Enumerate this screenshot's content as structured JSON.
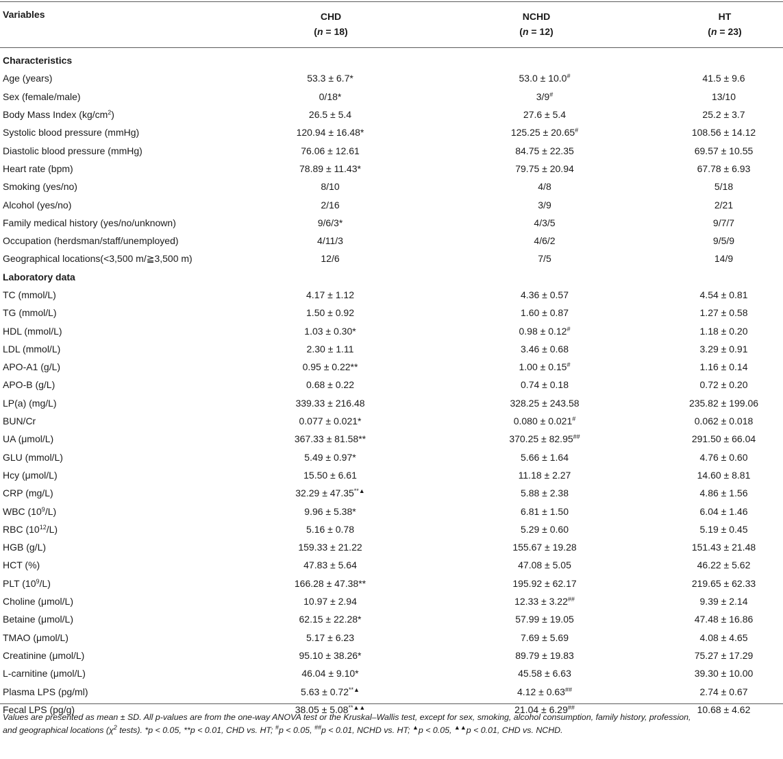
{
  "header": {
    "variables": "Variables",
    "columns": [
      {
        "name": "CHD",
        "n_prefix": "(",
        "n_var": "n",
        "n_suffix": " = 18)"
      },
      {
        "name": "NCHD",
        "n_prefix": "(",
        "n_var": "n",
        "n_suffix": " = 12)"
      },
      {
        "name": "HT",
        "n_prefix": "(",
        "n_var": "n",
        "n_suffix": " = 23)"
      }
    ]
  },
  "rows": [
    {
      "type": "section",
      "label": "Characteristics"
    },
    {
      "label": "Age (years)",
      "v": [
        [
          "53.3 ± 6.7*",
          ""
        ],
        [
          "53.0 ± 10.0",
          "#"
        ],
        [
          "41.5 ± 9.6",
          ""
        ]
      ]
    },
    {
      "label": "Sex (female/male)",
      "v": [
        [
          "0/18*",
          ""
        ],
        [
          "3/9",
          "#"
        ],
        [
          "13/10",
          ""
        ]
      ]
    },
    {
      "label": "Body Mass Index (kg/cm",
      "label_sup": "2",
      "label_tail": ")",
      "v": [
        [
          "26.5 ± 5.4",
          ""
        ],
        [
          "27.6 ± 5.4",
          ""
        ],
        [
          "25.2 ± 3.7",
          ""
        ]
      ]
    },
    {
      "label": "Systolic blood pressure (mmHg)",
      "v": [
        [
          "120.94 ± 16.48*",
          ""
        ],
        [
          "125.25 ± 20.65",
          "#"
        ],
        [
          "108.56 ± 14.12",
          ""
        ]
      ]
    },
    {
      "label": "Diastolic blood pressure (mmHg)",
      "v": [
        [
          "76.06 ± 12.61",
          ""
        ],
        [
          "84.75 ± 22.35",
          ""
        ],
        [
          "69.57 ± 10.55",
          ""
        ]
      ]
    },
    {
      "label": "Heart rate (bpm)",
      "v": [
        [
          "78.89 ± 11.43*",
          ""
        ],
        [
          "79.75 ± 20.94",
          ""
        ],
        [
          "67.78 ± 6.93",
          ""
        ]
      ]
    },
    {
      "label": "Smoking (yes/no)",
      "v": [
        [
          "8/10",
          ""
        ],
        [
          "4/8",
          ""
        ],
        [
          "5/18",
          ""
        ]
      ]
    },
    {
      "label": "Alcohol (yes/no)",
      "v": [
        [
          "2/16",
          ""
        ],
        [
          "3/9",
          ""
        ],
        [
          "2/21",
          ""
        ]
      ]
    },
    {
      "label": "Family medical history (yes/no/unknown)",
      "v": [
        [
          "9/6/3*",
          ""
        ],
        [
          "4/3/5",
          ""
        ],
        [
          "9/7/7",
          ""
        ]
      ]
    },
    {
      "label": "Occupation (herdsman/staff/unemployed)",
      "v": [
        [
          "4/11/3",
          ""
        ],
        [
          "4/6/2",
          ""
        ],
        [
          "9/5/9",
          ""
        ]
      ]
    },
    {
      "label": "Geographical locations(<3,500 m/≧3,500 m)",
      "v": [
        [
          "12/6",
          ""
        ],
        [
          "7/5",
          ""
        ],
        [
          "14/9",
          ""
        ]
      ]
    },
    {
      "type": "section",
      "label": "Laboratory data"
    },
    {
      "label": "TC (mmol/L)",
      "v": [
        [
          "4.17 ± 1.12",
          ""
        ],
        [
          "4.36 ± 0.57",
          ""
        ],
        [
          "4.54 ± 0.81",
          ""
        ]
      ]
    },
    {
      "label": "TG (mmol/L)",
      "v": [
        [
          "1.50 ± 0.92",
          ""
        ],
        [
          "1.60 ± 0.87",
          ""
        ],
        [
          "1.27 ± 0.58",
          ""
        ]
      ]
    },
    {
      "label": "HDL (mmol/L)",
      "v": [
        [
          "1.03 ± 0.30*",
          ""
        ],
        [
          "0.98 ± 0.12",
          "#"
        ],
        [
          "1.18 ± 0.20",
          ""
        ]
      ]
    },
    {
      "label": "LDL (mmol/L)",
      "v": [
        [
          "2.30 ± 1.11",
          ""
        ],
        [
          "3.46 ± 0.68",
          ""
        ],
        [
          "3.29 ± 0.91",
          ""
        ]
      ]
    },
    {
      "label": "APO-A1 (g/L)",
      "v": [
        [
          "0.95 ± 0.22**",
          ""
        ],
        [
          "1.00 ± 0.15",
          "#"
        ],
        [
          "1.16 ± 0.14",
          ""
        ]
      ]
    },
    {
      "label": "APO-B (g/L)",
      "v": [
        [
          "0.68 ± 0.22",
          ""
        ],
        [
          "0.74 ± 0.18",
          ""
        ],
        [
          "0.72 ± 0.20",
          ""
        ]
      ]
    },
    {
      "label": "LP(a) (mg/L)",
      "v": [
        [
          "339.33 ± 216.48",
          ""
        ],
        [
          "328.25 ± 243.58",
          ""
        ],
        [
          "235.82 ± 199.06",
          ""
        ]
      ]
    },
    {
      "label": "BUN/Cr",
      "v": [
        [
          "0.077 ± 0.021*",
          ""
        ],
        [
          "0.080 ± 0.021",
          "#"
        ],
        [
          "0.062 ± 0.018",
          ""
        ]
      ]
    },
    {
      "label": "UA (μmol/L)",
      "v": [
        [
          "367.33 ± 81.58**",
          ""
        ],
        [
          "370.25 ± 82.95",
          "##"
        ],
        [
          "291.50 ± 66.04",
          ""
        ]
      ]
    },
    {
      "label": "GLU (mmol/L)",
      "v": [
        [
          "5.49 ± 0.97*",
          ""
        ],
        [
          "5.66 ± 1.64",
          ""
        ],
        [
          "4.76 ± 0.60",
          ""
        ]
      ]
    },
    {
      "label": "Hcy (μmol/L)",
      "v": [
        [
          "15.50 ± 6.61",
          ""
        ],
        [
          "11.18 ± 2.27",
          ""
        ],
        [
          "14.60 ± 8.81",
          ""
        ]
      ]
    },
    {
      "label": "CRP (mg/L)",
      "v": [
        [
          "32.29 ± 47.35",
          "**▲"
        ],
        [
          "5.88 ± 2.38",
          ""
        ],
        [
          "4.86 ± 1.56",
          ""
        ]
      ]
    },
    {
      "label": "WBC (10",
      "label_sup": "9",
      "label_tail": "/L)",
      "v": [
        [
          "9.96 ± 5.38*",
          ""
        ],
        [
          "6.81 ± 1.50",
          ""
        ],
        [
          "6.04 ± 1.46",
          ""
        ]
      ]
    },
    {
      "label": "RBC (10",
      "label_sup": "12",
      "label_tail": "/L)",
      "v": [
        [
          "5.16 ± 0.78",
          ""
        ],
        [
          "5.29 ± 0.60",
          ""
        ],
        [
          "5.19 ± 0.45",
          ""
        ]
      ]
    },
    {
      "label": "HGB (g/L)",
      "v": [
        [
          "159.33 ± 21.22",
          ""
        ],
        [
          "155.67 ± 19.28",
          ""
        ],
        [
          "151.43 ± 21.48",
          ""
        ]
      ]
    },
    {
      "label": "HCT (%)",
      "v": [
        [
          "47.83 ± 5.64",
          ""
        ],
        [
          "47.08 ± 5.05",
          ""
        ],
        [
          "46.22 ± 5.62",
          ""
        ]
      ]
    },
    {
      "label": "PLT (10",
      "label_sup": "9",
      "label_tail": "/L)",
      "v": [
        [
          "166.28 ± 47.38**",
          ""
        ],
        [
          "195.92 ± 62.17",
          ""
        ],
        [
          "219.65 ± 62.33",
          ""
        ]
      ]
    },
    {
      "label": "Choline (μmol/L)",
      "v": [
        [
          "10.97 ± 2.94",
          ""
        ],
        [
          "12.33 ± 3.22",
          "##"
        ],
        [
          "9.39 ± 2.14",
          ""
        ]
      ]
    },
    {
      "label": "Betaine (μmol/L)",
      "v": [
        [
          "62.15 ± 22.28*",
          ""
        ],
        [
          "57.99 ± 19.05",
          ""
        ],
        [
          "47.48 ± 16.86",
          ""
        ]
      ]
    },
    {
      "label": "TMAO (μmol/L)",
      "v": [
        [
          "5.17 ± 6.23",
          ""
        ],
        [
          "7.69 ± 5.69",
          ""
        ],
        [
          "4.08 ± 4.65",
          ""
        ]
      ]
    },
    {
      "label": "Creatinine (μmol/L)",
      "v": [
        [
          "95.10 ± 38.26*",
          ""
        ],
        [
          "89.79 ± 19.83",
          ""
        ],
        [
          "75.27 ± 17.29",
          ""
        ]
      ]
    },
    {
      "label": "L-carnitine (μmol/L)",
      "v": [
        [
          "46.04 ± 9.10*",
          ""
        ],
        [
          "45.58 ± 6.63",
          ""
        ],
        [
          "39.30 ± 10.00",
          ""
        ]
      ]
    },
    {
      "label": "Plasma LPS (pg/ml)",
      "v": [
        [
          "5.63 ± 0.72",
          "**▲"
        ],
        [
          "4.12 ± 0.63",
          "##"
        ],
        [
          "2.74 ± 0.67",
          ""
        ]
      ]
    },
    {
      "label": "Fecal LPS (pg/g)",
      "v": [
        [
          "38.05 ± 5.08",
          "**▲▲"
        ],
        [
          "21.04 ± 6.29",
          "##"
        ],
        [
          "10.68 ± 4.62",
          ""
        ]
      ]
    }
  ],
  "footnote": {
    "line1": "Values are presented as mean ± SD. All p-values are from the one-way ANOVA test or the Kruskal–Wallis test, except for sex, smoking, alcohol consumption, family history, profession,",
    "line2_a": "and geographical locations (χ",
    "line2_sup1": "2",
    "line2_b": " tests). *p < 0.05, **p < 0.01, CHD vs. HT; ",
    "line2_sup2": "#",
    "line2_c": "p < 0.05, ",
    "line2_sup3": "##",
    "line2_d": "p < 0.01, NCHD vs. HT; ",
    "line2_sup4": "▲",
    "line2_e": "p < 0.05, ",
    "line2_sup5": "▲▲",
    "line2_f": "p < 0.01, CHD vs. NCHD."
  }
}
